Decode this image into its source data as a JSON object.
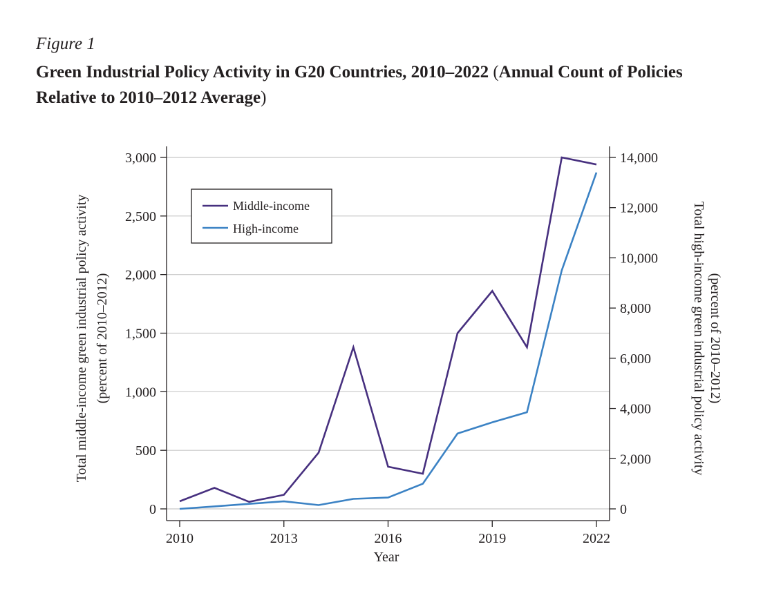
{
  "figure": {
    "label": "Figure 1",
    "title_main": "Green Industrial Policy Activity in G20 Countries, 2010–2022",
    "title_paren_open": "(",
    "title_paren_text": "Annual Count of Policies Relative to 2010–2012 Average",
    "title_paren_close": ")"
  },
  "colors": {
    "middle_income": "#47307f",
    "high_income": "#3b82c4"
  },
  "chart_data": {
    "type": "line",
    "x": [
      2010,
      2011,
      2012,
      2013,
      2014,
      2015,
      2016,
      2017,
      2018,
      2019,
      2020,
      2021,
      2022
    ],
    "xlabel": "Year",
    "xticks": [
      2010,
      2013,
      2016,
      2019,
      2022
    ],
    "xtick_labels": [
      "2010",
      "2013",
      "2016",
      "2019",
      "2022"
    ],
    "xlim": [
      2010,
      2022
    ],
    "y_left": {
      "label_line1": "Total middle-income green industrial policy activity",
      "label_line2": "(percent of 2010–2012)",
      "lim": [
        0,
        3000
      ],
      "ticks": [
        0,
        500,
        1000,
        1500,
        2000,
        2500,
        3000
      ],
      "tick_labels": [
        "0",
        "500",
        "1,000",
        "1,500",
        "2,000",
        "2,500",
        "3,000"
      ]
    },
    "y_right": {
      "label_line1": "Total high-income green industrial policy activity",
      "label_line2": "(percent of 2010–2012)",
      "lim": [
        0,
        14000
      ],
      "ticks": [
        0,
        2000,
        4000,
        6000,
        8000,
        10000,
        12000,
        14000
      ],
      "tick_labels": [
        "0",
        "2,000",
        "4,000",
        "6,000",
        "8,000",
        "10,000",
        "12,000",
        "14,000"
      ]
    },
    "grid": true,
    "legend_position": "top-left",
    "series": [
      {
        "name": "Middle-income",
        "axis": "left",
        "values": [
          65,
          180,
          60,
          120,
          480,
          1380,
          360,
          300,
          1500,
          1860,
          1380,
          3000,
          2940
        ]
      },
      {
        "name": "High-income",
        "axis": "right",
        "values": [
          0,
          100,
          200,
          300,
          150,
          400,
          450,
          1000,
          3000,
          3450,
          3850,
          9500,
          13400
        ]
      }
    ]
  }
}
